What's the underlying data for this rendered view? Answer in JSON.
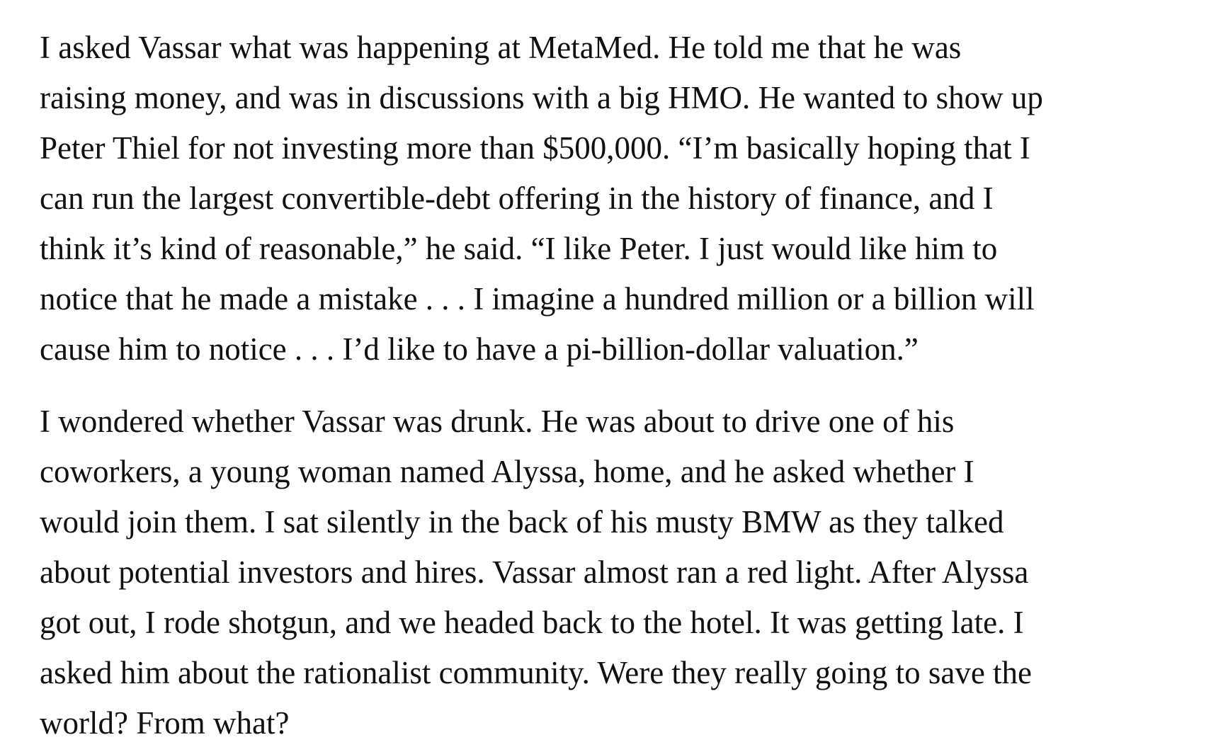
{
  "article": {
    "paragraphs": [
      {
        "lines": [
          "I asked Vassar what was happening at MetaMed. He told me that he was",
          "raising money, and was in discussions with a big HMO. He wanted to show up",
          "Peter Thiel for not investing more than $500,000. “I’m basically hoping that I",
          "can run the largest convertible-debt offering in the history of finance, and I",
          "think it’s kind of reasonable,” he said. “I like Peter. I just would like him to",
          "notice that he made a mistake . . . I imagine a hundred million or a billion will",
          "cause him to notice . . . I’d like to have a pi-billion-dollar valuation.”"
        ]
      },
      {
        "lines": [
          "I wondered whether Vassar was drunk. He was about to drive one of his",
          "coworkers, a young woman named Alyssa, home, and he asked whether I",
          "would join them. I sat silently in the back of his musty BMW as they talked",
          "about potential investors and hires. Vassar almost ran a red light. After Alyssa",
          "got out, I rode shotgun, and we headed back to the hotel. It was getting late. I",
          "asked him about the rationalist community. Were they really going to save the",
          "world? From what?"
        ]
      }
    ]
  }
}
